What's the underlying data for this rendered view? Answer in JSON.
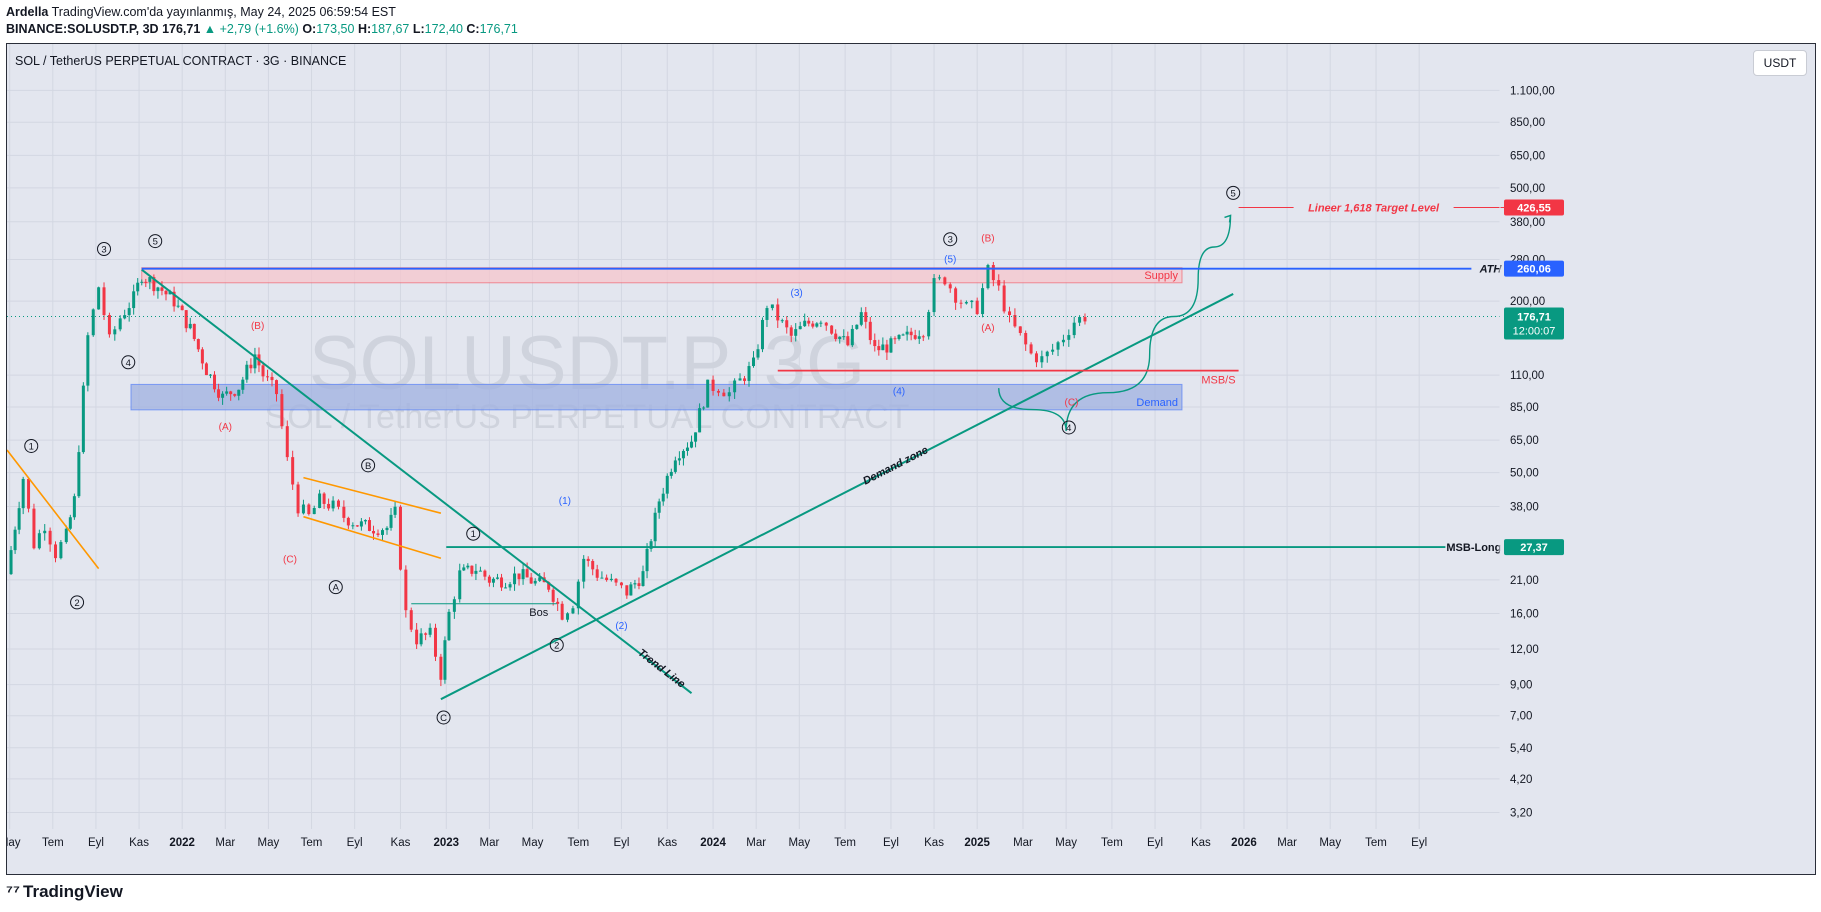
{
  "header": {
    "author": "Ardella",
    "published": "TradingView.com'da yayınlanmış, May 24, 2025 06:59:54 EST",
    "symbol": "BINANCE:SOLUSDT.P, 3D",
    "last": "176,71",
    "change": "▲ +2,79 (+1.6%)",
    "o_label": "O:",
    "o": "173,50",
    "h_label": "H:",
    "h": "187,67",
    "l_label": "L:",
    "l": "172,40",
    "c_label": "C:",
    "c": "176,71"
  },
  "chart_title": "SOL / TetherUS PERPETUAL CONTRACT · 3G · BINANCE",
  "currency_button": "USDT",
  "watermark": {
    "line1": "SOLUSDT.P, 3G",
    "line2": "SOL / TetherUS PERPETUAL CONTRACT"
  },
  "footer": {
    "brand": "TradingView"
  },
  "colors": {
    "bg": "#e3e6ef",
    "up": "#089981",
    "down": "#f23645",
    "accent": "#2962ff",
    "trend": "#089981",
    "orange": "#ff9800",
    "supply": "#f7c6cc",
    "demand": "#9fb0e0"
  },
  "chart_data": {
    "type": "candlestick",
    "title": "SOL / TetherUS PERPETUAL CONTRACT · 3G · BINANCE",
    "scale": "log",
    "ylim": [
      2.8,
      1600
    ],
    "xlim": [
      2021.36,
      2026.9
    ],
    "y_ticks": [
      {
        "v": 1100,
        "label": "1.100,00"
      },
      {
        "v": 850,
        "label": "850,00"
      },
      {
        "v": 650,
        "label": "650,00"
      },
      {
        "v": 500,
        "label": "500,00"
      },
      {
        "v": 380,
        "label": "380,00"
      },
      {
        "v": 280,
        "label": "280,00"
      },
      {
        "v": 200,
        "label": "200,00"
      },
      {
        "v": 110,
        "label": "110,00"
      },
      {
        "v": 85,
        "label": "85,00"
      },
      {
        "v": 65,
        "label": "65,00"
      },
      {
        "v": 50,
        "label": "50,00"
      },
      {
        "v": 38,
        "label": "38,00"
      },
      {
        "v": 21,
        "label": "21,00"
      },
      {
        "v": 16,
        "label": "16,00"
      },
      {
        "v": 12,
        "label": "12,00"
      },
      {
        "v": 9,
        "label": "9,00"
      },
      {
        "v": 7,
        "label": "7,00"
      },
      {
        "v": 5.4,
        "label": "5,40"
      },
      {
        "v": 4.2,
        "label": "4,20"
      },
      {
        "v": 3.2,
        "label": "3,20"
      }
    ],
    "x_ticks": [
      {
        "t": 2021.37,
        "label": "May",
        "bold": false
      },
      {
        "t": 2021.53,
        "label": "Tem",
        "bold": false
      },
      {
        "t": 2021.69,
        "label": "Eyl",
        "bold": false
      },
      {
        "t": 2021.85,
        "label": "Kas",
        "bold": false
      },
      {
        "t": 2022.01,
        "label": "2022",
        "bold": true
      },
      {
        "t": 2022.17,
        "label": "Mar",
        "bold": false
      },
      {
        "t": 2022.33,
        "label": "May",
        "bold": false
      },
      {
        "t": 2022.49,
        "label": "Tem",
        "bold": false
      },
      {
        "t": 2022.65,
        "label": "Eyl",
        "bold": false
      },
      {
        "t": 2022.82,
        "label": "Kas",
        "bold": false
      },
      {
        "t": 2022.99,
        "label": "2023",
        "bold": true
      },
      {
        "t": 2023.15,
        "label": "Mar",
        "bold": false
      },
      {
        "t": 2023.31,
        "label": "May",
        "bold": false
      },
      {
        "t": 2023.48,
        "label": "Tem",
        "bold": false
      },
      {
        "t": 2023.64,
        "label": "Eyl",
        "bold": false
      },
      {
        "t": 2023.81,
        "label": "Kas",
        "bold": false
      },
      {
        "t": 2023.98,
        "label": "2024",
        "bold": true
      },
      {
        "t": 2024.14,
        "label": "Mar",
        "bold": false
      },
      {
        "t": 2024.3,
        "label": "May",
        "bold": false
      },
      {
        "t": 2024.47,
        "label": "Tem",
        "bold": false
      },
      {
        "t": 2024.64,
        "label": "Eyl",
        "bold": false
      },
      {
        "t": 2024.8,
        "label": "Kas",
        "bold": false
      },
      {
        "t": 2024.96,
        "label": "2025",
        "bold": true
      },
      {
        "t": 2025.13,
        "label": "Mar",
        "bold": false
      },
      {
        "t": 2025.29,
        "label": "May",
        "bold": false
      },
      {
        "t": 2025.46,
        "label": "Tem",
        "bold": false
      },
      {
        "t": 2025.62,
        "label": "Eyl",
        "bold": false
      },
      {
        "t": 2025.79,
        "label": "Kas",
        "bold": false
      },
      {
        "t": 2025.95,
        "label": "2026",
        "bold": true
      },
      {
        "t": 2026.11,
        "label": "Mar",
        "bold": false
      },
      {
        "t": 2026.27,
        "label": "May",
        "bold": false
      },
      {
        "t": 2026.44,
        "label": "Tem",
        "bold": false
      },
      {
        "t": 2026.6,
        "label": "Eyl",
        "bold": false
      }
    ],
    "price_path": [
      [
        2021.36,
        22
      ],
      [
        2021.42,
        48
      ],
      [
        2021.46,
        28
      ],
      [
        2021.5,
        33
      ],
      [
        2021.54,
        26
      ],
      [
        2021.58,
        30
      ],
      [
        2021.61,
        40
      ],
      [
        2021.66,
        150
      ],
      [
        2021.7,
        225
      ],
      [
        2021.74,
        145
      ],
      [
        2021.78,
        175
      ],
      [
        2021.83,
        205
      ],
      [
        2021.86,
        248
      ],
      [
        2021.92,
        225
      ],
      [
        2021.98,
        200
      ],
      [
        2022.04,
        160
      ],
      [
        2022.1,
        115
      ],
      [
        2022.16,
        92
      ],
      [
        2022.22,
        100
      ],
      [
        2022.28,
        130
      ],
      [
        2022.31,
        110
      ],
      [
        2022.36,
        95
      ],
      [
        2022.4,
        55
      ],
      [
        2022.44,
        38
      ],
      [
        2022.48,
        35
      ],
      [
        2022.52,
        40
      ],
      [
        2022.57,
        38
      ],
      [
        2022.61,
        35
      ],
      [
        2022.66,
        33
      ],
      [
        2022.72,
        32
      ],
      [
        2022.77,
        32
      ],
      [
        2022.8,
        36
      ],
      [
        2022.84,
        16
      ],
      [
        2022.88,
        13
      ],
      [
        2022.93,
        13.5
      ],
      [
        2022.97,
        9.8
      ],
      [
        2023.0,
        16
      ],
      [
        2023.04,
        22
      ],
      [
        2023.1,
        23
      ],
      [
        2023.15,
        21
      ],
      [
        2023.21,
        21
      ],
      [
        2023.26,
        22
      ],
      [
        2023.32,
        20.5
      ],
      [
        2023.37,
        20
      ],
      [
        2023.42,
        16
      ],
      [
        2023.46,
        17.5
      ],
      [
        2023.5,
        25
      ],
      [
        2023.55,
        22
      ],
      [
        2023.62,
        20
      ],
      [
        2023.66,
        19
      ],
      [
        2023.72,
        22
      ],
      [
        2023.78,
        40
      ],
      [
        2023.84,
        58
      ],
      [
        2023.9,
        65
      ],
      [
        2023.96,
        100
      ],
      [
        2024.0,
        100
      ],
      [
        2024.04,
        95
      ],
      [
        2024.08,
        105
      ],
      [
        2024.13,
        120
      ],
      [
        2024.18,
        195
      ],
      [
        2024.22,
        175
      ],
      [
        2024.27,
        150
      ],
      [
        2024.32,
        165
      ],
      [
        2024.38,
        175
      ],
      [
        2024.42,
        160
      ],
      [
        2024.48,
        140
      ],
      [
        2024.53,
        180
      ],
      [
        2024.58,
        135
      ],
      [
        2024.64,
        140
      ],
      [
        2024.7,
        150
      ],
      [
        2024.76,
        160
      ],
      [
        2024.8,
        230
      ],
      [
        2024.84,
        240
      ],
      [
        2024.88,
        210
      ],
      [
        2024.92,
        190
      ],
      [
        2024.96,
        190
      ],
      [
        2025.0,
        255
      ],
      [
        2025.04,
        220
      ],
      [
        2025.08,
        170
      ],
      [
        2025.12,
        150
      ],
      [
        2025.16,
        130
      ],
      [
        2025.2,
        125
      ],
      [
        2025.24,
        135
      ],
      [
        2025.28,
        150
      ],
      [
        2025.32,
        170
      ],
      [
        2025.36,
        176.71
      ]
    ],
    "current_price": {
      "value": 176.71,
      "label": "176,71",
      "countdown": "12:00:07"
    },
    "price_labels": [
      {
        "v": 426.55,
        "label": "426,55",
        "color": "#f23645"
      },
      {
        "v": 260.06,
        "label": "260,06",
        "color": "#2962ff"
      },
      {
        "v": 27.37,
        "label": "27,37",
        "color": "#089981"
      }
    ],
    "horizontal_levels": [
      {
        "v": 260.06,
        "label": "ATH",
        "color": "#2962ff",
        "t0": 2021.86,
        "t1": 2026.92
      },
      {
        "v": 27.37,
        "label": "MSB-Long",
        "color": "#089981",
        "t0": 2022.99,
        "t1": 2026.92
      },
      {
        "v": 426.55,
        "label": "Lineer 1,618 Target Level",
        "color": "#f23645",
        "t0": 2025.93,
        "t1": 2026.92
      },
      {
        "v": 114,
        "label": "MSB/S",
        "color": "#f23645",
        "t0": 2024.22,
        "t1": 2025.93
      }
    ],
    "zones": [
      {
        "label": "Supply",
        "lo": 232,
        "hi": 262,
        "t0": 2021.86,
        "t1": 2025.72,
        "color": "#f23645"
      },
      {
        "label": "Demand",
        "lo": 83,
        "hi": 102,
        "t0": 2021.82,
        "t1": 2025.72,
        "color": "#2962ff"
      }
    ],
    "trendlines": [
      {
        "label": "Trend Line",
        "from": [
          2021.86,
          258
        ],
        "to": [
          2023.9,
          8.4
        ],
        "color": "#089981"
      },
      {
        "label": "Demand zone",
        "from": [
          2022.97,
          8.0
        ],
        "to": [
          2025.91,
          212
        ],
        "color": "#089981"
      },
      {
        "label": "Bos",
        "from": [
          2022.86,
          17.3
        ],
        "to": [
          2023.4,
          17.3
        ],
        "color": "#089981",
        "thin": true
      },
      {
        "label": "",
        "from": [
          2021.36,
          60
        ],
        "to": [
          2021.7,
          23
        ],
        "color": "#ff9800"
      },
      {
        "label": "",
        "from": [
          2022.46,
          48
        ],
        "to": [
          2022.97,
          36
        ],
        "color": "#ff9800"
      },
      {
        "label": "",
        "from": [
          2022.46,
          35
        ],
        "to": [
          2022.97,
          25
        ],
        "color": "#ff9800"
      }
    ],
    "projection": {
      "points": [
        [
          2025.04,
          99
        ],
        [
          2025.29,
          70
        ],
        [
          2025.6,
          130
        ],
        [
          2025.78,
          240
        ],
        [
          2025.9,
          400
        ]
      ],
      "color": "#089981"
    },
    "waves": [
      {
        "t": 2021.45,
        "v": 62,
        "label": "1",
        "style": "circle",
        "color": "#131722"
      },
      {
        "t": 2021.62,
        "v": 17.5,
        "label": "2",
        "style": "circle",
        "color": "#131722"
      },
      {
        "t": 2021.72,
        "v": 305,
        "label": "3",
        "style": "circle",
        "color": "#131722"
      },
      {
        "t": 2021.81,
        "v": 122,
        "label": "4",
        "style": "circle",
        "color": "#131722"
      },
      {
        "t": 2021.91,
        "v": 325,
        "label": "5",
        "style": "circle",
        "color": "#131722"
      },
      {
        "t": 2022.29,
        "v": 165,
        "label": "(B)",
        "style": "paren",
        "color": "#f23645"
      },
      {
        "t": 2022.17,
        "v": 73,
        "label": "(A)",
        "style": "paren",
        "color": "#f23645"
      },
      {
        "t": 2022.41,
        "v": 25,
        "label": "(C)",
        "style": "paren",
        "color": "#f23645"
      },
      {
        "t": 2022.7,
        "v": 53,
        "label": "B",
        "style": "circle",
        "color": "#131722"
      },
      {
        "t": 2022.58,
        "v": 19.8,
        "label": "A",
        "style": "circle",
        "color": "#131722"
      },
      {
        "t": 2022.98,
        "v": 6.9,
        "label": "C",
        "style": "circle",
        "color": "#131722"
      },
      {
        "t": 2023.09,
        "v": 30.5,
        "label": "1",
        "style": "circle",
        "color": "#131722"
      },
      {
        "t": 2023.4,
        "v": 12.4,
        "label": "2",
        "style": "circle",
        "color": "#131722"
      },
      {
        "t": 2023.43,
        "v": 40,
        "label": "(1)",
        "style": "paren",
        "color": "#2962ff"
      },
      {
        "t": 2023.64,
        "v": 14.6,
        "label": "(2)",
        "style": "paren",
        "color": "#2962ff"
      },
      {
        "t": 2024.29,
        "v": 215,
        "label": "(3)",
        "style": "paren",
        "color": "#2962ff"
      },
      {
        "t": 2024.67,
        "v": 97,
        "label": "(4)",
        "style": "paren",
        "color": "#2962ff"
      },
      {
        "t": 2024.86,
        "v": 330,
        "label": "3",
        "style": "circle",
        "color": "#131722"
      },
      {
        "t": 2024.86,
        "v": 282,
        "label": "(5)",
        "style": "paren",
        "color": "#2962ff"
      },
      {
        "t": 2025.0,
        "v": 335,
        "label": "(B)",
        "style": "paren",
        "color": "#f23645"
      },
      {
        "t": 2025.0,
        "v": 162,
        "label": "(A)",
        "style": "paren",
        "color": "#f23645"
      },
      {
        "t": 2025.31,
        "v": 89,
        "label": "(C)",
        "style": "paren",
        "color": "#f23645"
      },
      {
        "t": 2025.3,
        "v": 72,
        "label": "4",
        "style": "circle",
        "color": "#131722"
      },
      {
        "t": 2025.91,
        "v": 480,
        "label": "5",
        "style": "circle",
        "color": "#131722"
      }
    ]
  }
}
